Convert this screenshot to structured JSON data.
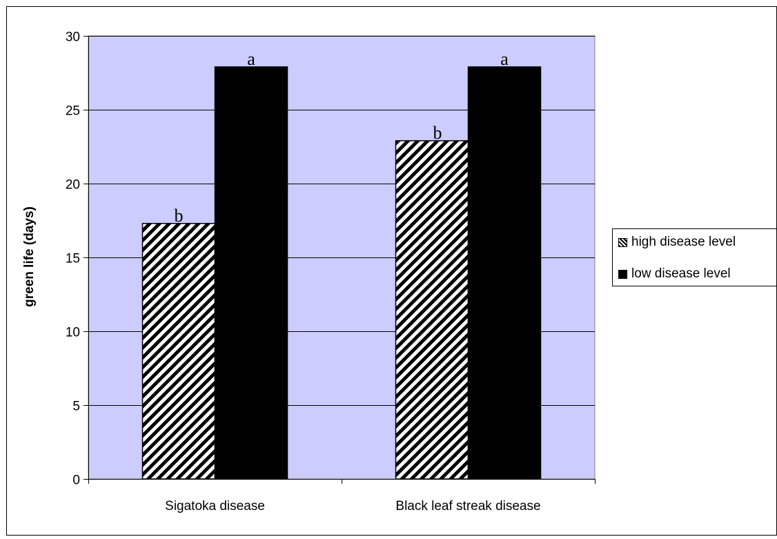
{
  "chart_data": {
    "type": "bar",
    "categories": [
      "Sigatoka disease",
      "Black leaf streak disease"
    ],
    "series": [
      {
        "name": "high disease level",
        "values": [
          17.3,
          22.9
        ],
        "labels": [
          "b",
          "b"
        ],
        "fill": "hatched"
      },
      {
        "name": "low disease level",
        "values": [
          27.9,
          27.9
        ],
        "labels": [
          "a",
          "a"
        ],
        "fill": "solid"
      }
    ],
    "title": "",
    "xlabel": "",
    "ylabel": "green life (days)",
    "ylim": [
      0,
      30
    ],
    "yticks": [
      0,
      5,
      10,
      15,
      20,
      25,
      30
    ],
    "grid": true,
    "legend": "right",
    "colors": {
      "plot_background": "#ccccff",
      "grid": "#000000",
      "solid_bar": "#000000",
      "hatch_bar": "#000000"
    }
  }
}
